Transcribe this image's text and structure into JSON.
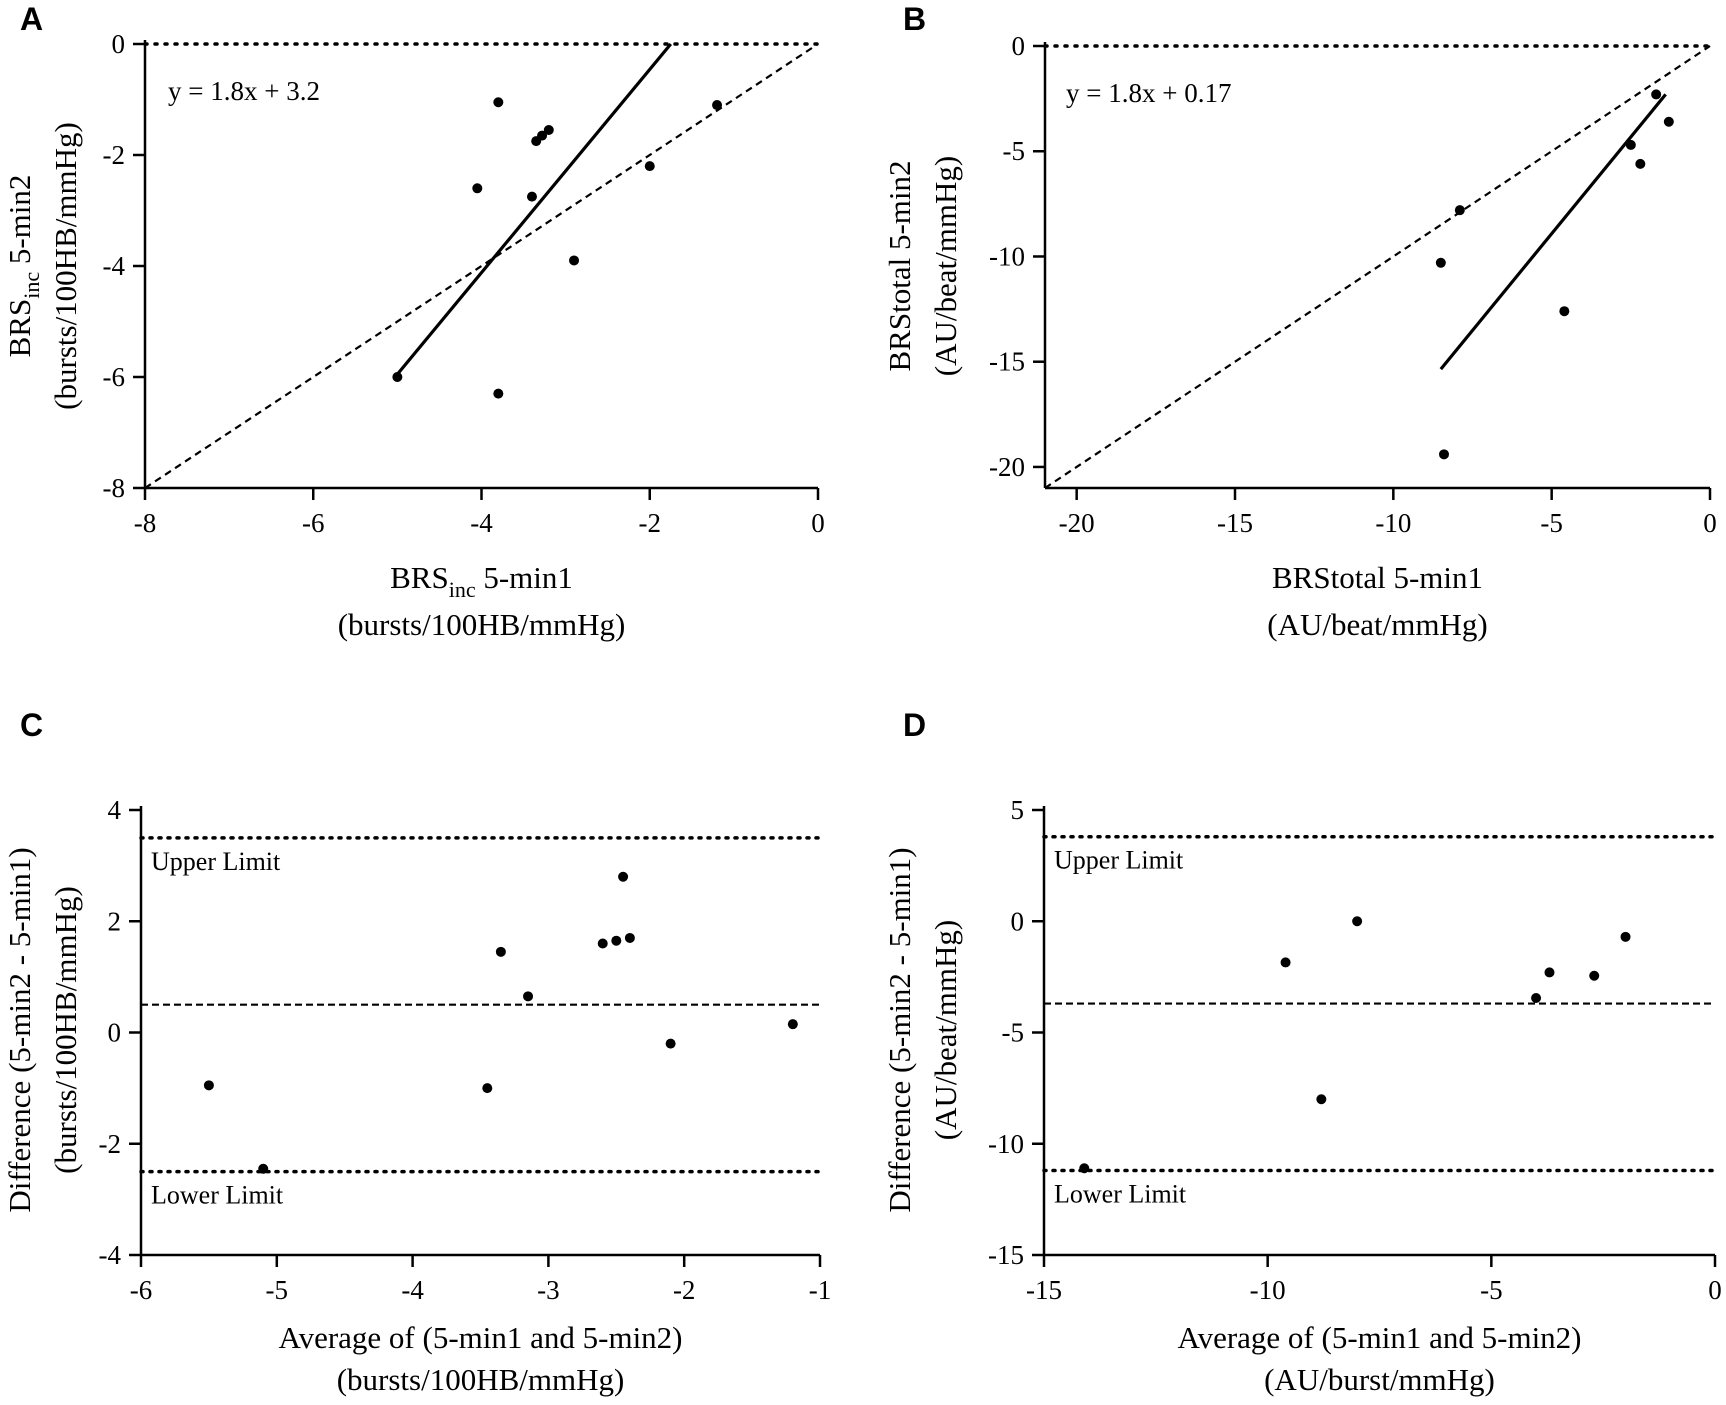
{
  "chart_data": [
    {
      "id": "A",
      "panel_label": "A",
      "type": "scatter",
      "xlim": [
        -8,
        0
      ],
      "ylim": [
        -8,
        0
      ],
      "xticks": [
        -8,
        -6,
        -4,
        -2,
        0
      ],
      "yticks": [
        -8,
        -6,
        -4,
        -2,
        0
      ],
      "xlabel": {
        "main": "BRS",
        "sub": "inc",
        "rest": " 5-min1",
        "units": "(bursts/100HB/mmHg)"
      },
      "ylabel": {
        "main": "BRS",
        "sub": "inc",
        "rest": " 5-min2",
        "units": "(bursts/100HB/mmHg)"
      },
      "equation": "y = 1.8x + 3.2",
      "points": [
        {
          "x": -5.0,
          "y": -6.0
        },
        {
          "x": -3.8,
          "y": -6.3
        },
        {
          "x": -4.05,
          "y": -2.6
        },
        {
          "x": -3.4,
          "y": -2.75
        },
        {
          "x": -3.35,
          "y": -1.75
        },
        {
          "x": -3.28,
          "y": -1.65
        },
        {
          "x": -3.2,
          "y": -1.55
        },
        {
          "x": -3.8,
          "y": -1.05
        },
        {
          "x": -2.9,
          "y": -3.9
        },
        {
          "x": -2.0,
          "y": -2.2
        },
        {
          "x": -1.2,
          "y": -1.1
        }
      ],
      "regression": {
        "x1": -5.0,
        "y1": -5.95,
        "x2": -1.75,
        "y2": 0.0
      },
      "identity_line": {
        "x1": -8,
        "y1": -8,
        "x2": 0,
        "y2": 0
      },
      "zero_line_y": 0
    },
    {
      "id": "B",
      "panel_label": "B",
      "type": "scatter",
      "xlim": [
        -21,
        0
      ],
      "ylim": [
        -21,
        0
      ],
      "xticks": [
        -20,
        -15,
        -10,
        -5,
        0
      ],
      "yticks": [
        -20,
        -15,
        -10,
        -5,
        0
      ],
      "xlabel": {
        "main": "BRStotal 5-min1",
        "units": "(AU/beat/mmHg)"
      },
      "ylabel": {
        "main": "BRStotal 5-min2",
        "units": "(AU/beat/mmHg)"
      },
      "equation": "y = 1.8x + 0.17",
      "points": [
        {
          "x": -8.5,
          "y": -10.3
        },
        {
          "x": -8.4,
          "y": -19.4
        },
        {
          "x": -7.9,
          "y": -7.8
        },
        {
          "x": -4.6,
          "y": -12.6
        },
        {
          "x": -2.5,
          "y": -4.7
        },
        {
          "x": -2.2,
          "y": -5.6
        },
        {
          "x": -1.7,
          "y": -2.3
        },
        {
          "x": -1.3,
          "y": -3.6
        }
      ],
      "regression": {
        "x1": -8.5,
        "y1": -15.35,
        "x2": -1.4,
        "y2": -2.3
      },
      "identity_line": {
        "x1": -21,
        "y1": -21,
        "x2": 0,
        "y2": 0
      },
      "zero_line_y": 0
    },
    {
      "id": "C",
      "panel_label": "C",
      "type": "scatter",
      "xlim": [
        -6,
        -1
      ],
      "ylim": [
        -4,
        4
      ],
      "xticks": [
        -6,
        -5,
        -4,
        -3,
        -2,
        -1
      ],
      "yticks": [
        -4,
        -2,
        0,
        2,
        4
      ],
      "xlabel": {
        "main": "Average of (5-min1 and 5-min2)",
        "units": "(bursts/100HB/mmHg)"
      },
      "ylabel": {
        "main": "Difference (5-min2 - 5-min1)",
        "units": "(bursts/100HB/mmHg)"
      },
      "upper_limit": 3.5,
      "lower_limit": -2.5,
      "mean_diff": 0.5,
      "upper_label": "Upper Limit",
      "lower_label": "Lower Limit",
      "points": [
        {
          "x": -5.5,
          "y": -0.95
        },
        {
          "x": -5.1,
          "y": -2.45
        },
        {
          "x": -3.45,
          "y": -1.0
        },
        {
          "x": -3.35,
          "y": 1.45
        },
        {
          "x": -3.15,
          "y": 0.65
        },
        {
          "x": -2.6,
          "y": 1.6
        },
        {
          "x": -2.5,
          "y": 1.65
        },
        {
          "x": -2.45,
          "y": 2.8
        },
        {
          "x": -2.4,
          "y": 1.7
        },
        {
          "x": -2.1,
          "y": -0.2
        },
        {
          "x": -1.2,
          "y": 0.15
        }
      ]
    },
    {
      "id": "D",
      "panel_label": "D",
      "type": "scatter",
      "xlim": [
        -15,
        0
      ],
      "ylim": [
        -15,
        5
      ],
      "xticks": [
        -15,
        -10,
        -5,
        0
      ],
      "yticks": [
        -15,
        -10,
        -5,
        0,
        5
      ],
      "xlabel": {
        "main": "Average of (5-min1 and 5-min2)",
        "units": "(AU/burst/mmHg)"
      },
      "ylabel": {
        "main": "Difference (5-min2 - 5-min1)",
        "units": "(AU/beat/mmHg)"
      },
      "upper_limit": 3.8,
      "lower_limit": -11.2,
      "mean_diff": -3.7,
      "upper_label": "Upper Limit",
      "lower_label": "Lower Limit",
      "points": [
        {
          "x": -14.1,
          "y": -11.1
        },
        {
          "x": -9.6,
          "y": -1.85
        },
        {
          "x": -8.8,
          "y": -8.0
        },
        {
          "x": -8.0,
          "y": 0.0
        },
        {
          "x": -4.0,
          "y": -3.45
        },
        {
          "x": -3.7,
          "y": -2.3
        },
        {
          "x": -2.7,
          "y": -2.45
        },
        {
          "x": -2.0,
          "y": -0.7
        }
      ]
    }
  ]
}
